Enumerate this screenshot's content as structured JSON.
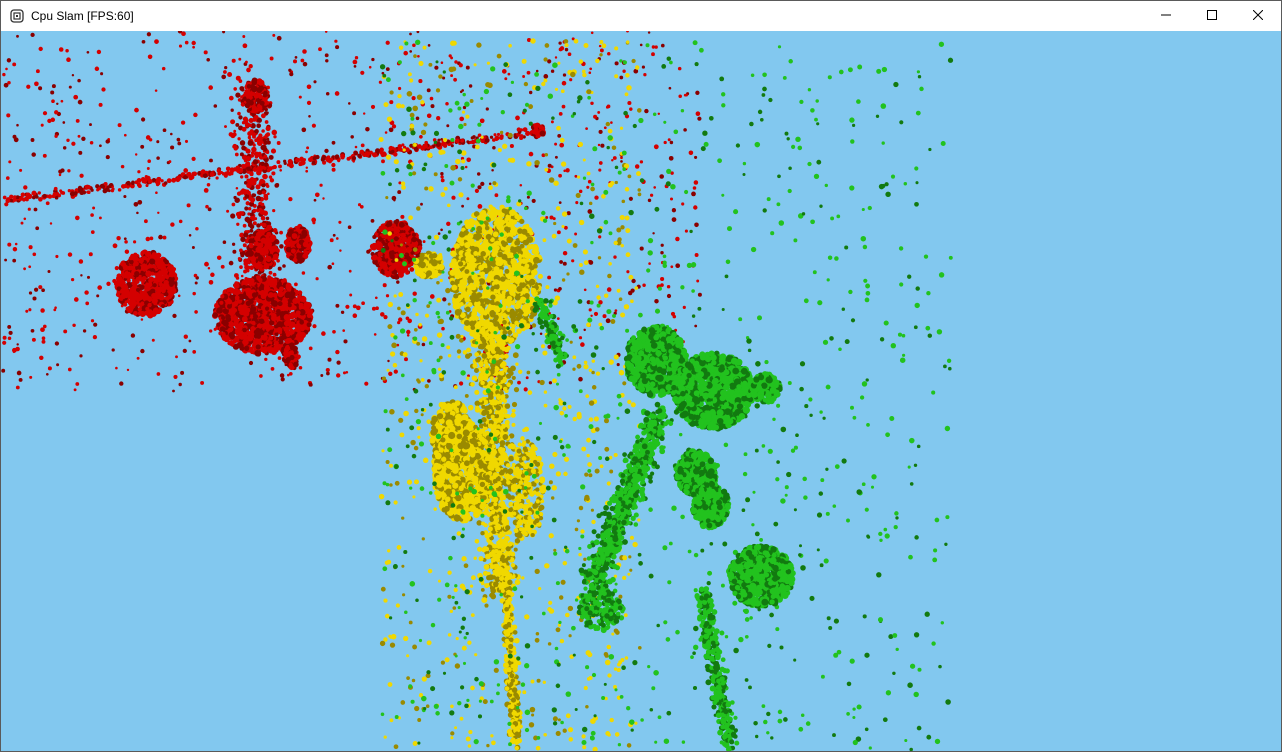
{
  "window": {
    "title": "Cpu Slam [FPS:60]",
    "icon": "app-window-icon",
    "controls": {
      "minimize_icon": "minimize-icon",
      "maximize_icon": "maximize-icon",
      "close_icon": "close-icon"
    }
  },
  "scene": {
    "background_color": "#82c8ef",
    "point_clouds": [
      {
        "name": "red",
        "color": "#d40000",
        "shade": "#8a0000"
      },
      {
        "name": "yellow",
        "color": "#f0d800",
        "shade": "#9a8a00"
      },
      {
        "name": "green",
        "color": "#22c21e",
        "shade": "#127a10"
      }
    ]
  }
}
